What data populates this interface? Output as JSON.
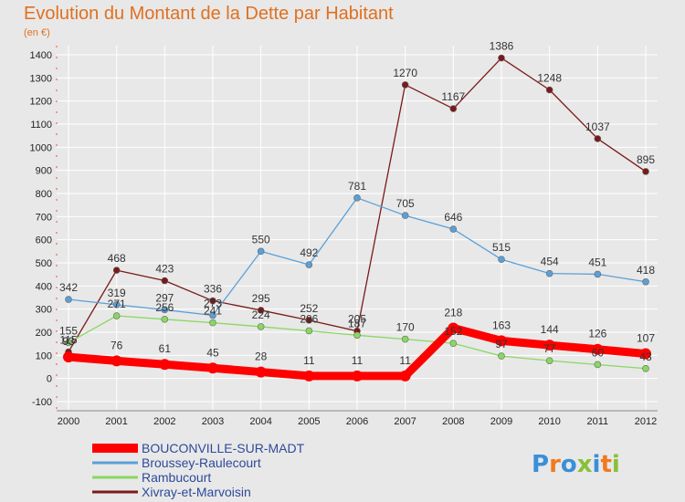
{
  "chart_data": {
    "type": "line",
    "title": "Evolution du Montant de la Dette par Habitant",
    "subtitle": "(en €)",
    "x": [
      "2000",
      "2001",
      "2002",
      "2003",
      "2004",
      "2005",
      "2006",
      "2007",
      "2008",
      "2009",
      "2010",
      "2011",
      "2012"
    ],
    "ylim": [
      -100,
      1400
    ],
    "yticks": [
      -100,
      0,
      100,
      200,
      300,
      400,
      500,
      600,
      700,
      800,
      900,
      1000,
      1100,
      1200,
      1300,
      1400
    ],
    "grid": true,
    "legend_position": "bottom-left",
    "series": [
      {
        "name": "BOUCONVILLE-SUR-MADT",
        "color": "#ff0000",
        "values": [
          93,
          76,
          61,
          45,
          28,
          11,
          11,
          11,
          218,
          163,
          144,
          126,
          107
        ]
      },
      {
        "name": "Broussey-Raulecourt",
        "color": "#5aa0d8",
        "values": [
          342,
          319,
          297,
          273,
          550,
          492,
          781,
          705,
          646,
          515,
          454,
          451,
          418
        ]
      },
      {
        "name": "Rambucourt",
        "color": "#88d860",
        "values": [
          155,
          271,
          256,
          241,
          224,
          206,
          187,
          170,
          152,
          97,
          77,
          60,
          43
        ]
      },
      {
        "name": "Xivray-et-Marvoisin",
        "color": "#7a1a1a",
        "values": [
          115,
          468,
          423,
          336,
          295,
          252,
          205,
          1270,
          1167,
          1386,
          1248,
          1037,
          895
        ]
      }
    ]
  },
  "logo": {
    "text": "Proxiti",
    "colors": [
      "#3a8fd8",
      "#f07a20",
      "#3a8fd8",
      "#88c03a",
      "#3a8fd8",
      "#f07a20",
      "#88c03a"
    ]
  }
}
